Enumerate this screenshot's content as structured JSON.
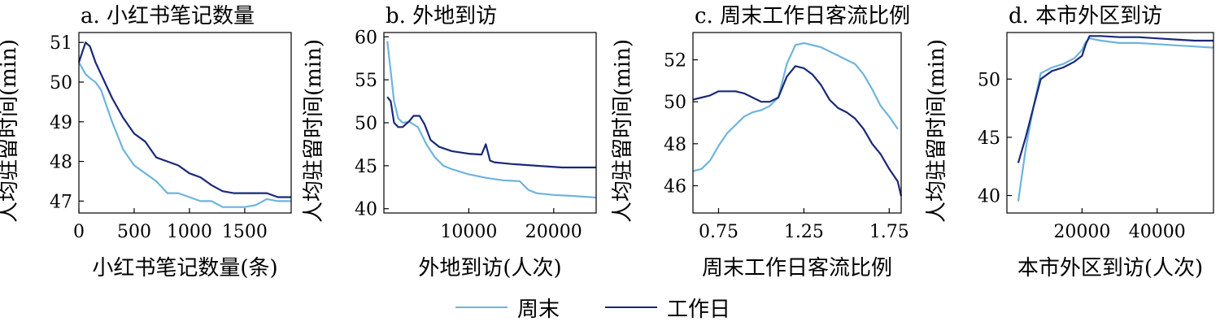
{
  "chart_data": [
    {
      "type": "line",
      "title": "a. 小红书笔记数量",
      "xlabel": "小红书笔记数量(条)",
      "ylabel": "人均驻留时间(min)",
      "xlim": [
        0,
        1920
      ],
      "ylim": [
        46.7,
        51.25
      ],
      "xticks": [
        0,
        500,
        1000,
        1500
      ],
      "yticks": [
        47,
        48,
        49,
        50,
        51
      ],
      "series": [
        {
          "name": "周末",
          "x": [
            0,
            60,
            100,
            150,
            200,
            300,
            400,
            500,
            600,
            700,
            800,
            900,
            1000,
            1100,
            1200,
            1300,
            1400,
            1500,
            1600,
            1700,
            1800,
            1920
          ],
          "y": [
            50.5,
            50.2,
            50.1,
            50.0,
            49.8,
            49.0,
            48.3,
            47.9,
            47.7,
            47.5,
            47.2,
            47.2,
            47.1,
            47.0,
            47.0,
            46.85,
            46.85,
            46.85,
            46.9,
            47.05,
            47.0,
            47.0
          ]
        },
        {
          "name": "工作日",
          "x": [
            0,
            60,
            100,
            150,
            200,
            300,
            400,
            500,
            600,
            700,
            800,
            900,
            1000,
            1100,
            1200,
            1300,
            1400,
            1500,
            1600,
            1700,
            1800,
            1920
          ],
          "y": [
            50.5,
            51.0,
            50.9,
            50.5,
            50.2,
            49.6,
            49.1,
            48.7,
            48.5,
            48.1,
            48.0,
            47.9,
            47.7,
            47.6,
            47.4,
            47.25,
            47.2,
            47.2,
            47.2,
            47.2,
            47.1,
            47.1
          ]
        }
      ]
    },
    {
      "type": "line",
      "title": "b. 外地到访",
      "xlabel": "外地到访(人次)",
      "ylabel": "人均驻留时间(min)",
      "xlim": [
        0,
        25000
      ],
      "ylim": [
        39.5,
        60.5
      ],
      "xticks": [
        10000,
        20000
      ],
      "yticks": [
        40,
        45,
        50,
        55,
        60
      ],
      "series": [
        {
          "name": "周末",
          "x": [
            400,
            800,
            1200,
            1700,
            2200,
            3000,
            4000,
            5000,
            6000,
            7000,
            8000,
            9000,
            10000,
            12000,
            14000,
            16000,
            17000,
            18000,
            20000,
            22000,
            25000
          ],
          "y": [
            59.5,
            56.0,
            52.5,
            50.5,
            50.0,
            50.1,
            49.5,
            47.5,
            46.0,
            45.0,
            44.6,
            44.3,
            44.0,
            43.6,
            43.3,
            43.2,
            42.2,
            41.8,
            41.6,
            41.5,
            41.3
          ]
        },
        {
          "name": "工作日",
          "x": [
            400,
            800,
            1200,
            1700,
            2200,
            3000,
            3500,
            4200,
            4800,
            5500,
            6500,
            8000,
            10000,
            11500,
            12000,
            12500,
            13000,
            15000,
            18000,
            21000,
            25000
          ],
          "y": [
            53.0,
            52.5,
            50.0,
            49.5,
            49.5,
            50.2,
            50.8,
            50.8,
            49.8,
            48.0,
            47.2,
            46.7,
            46.4,
            46.3,
            47.5,
            45.6,
            45.4,
            45.2,
            45.0,
            44.8,
            44.8
          ]
        }
      ]
    },
    {
      "type": "line",
      "title": "c. 周末工作日客流比例",
      "xlabel": "周末工作日客流比例",
      "ylabel": "人均驻留时间(min)",
      "xlim": [
        0.6,
        1.82
      ],
      "ylim": [
        44.7,
        53.3
      ],
      "xticks": [
        0.75,
        1.25,
        1.75
      ],
      "yticks": [
        46,
        48,
        50,
        52
      ],
      "series": [
        {
          "name": "周末",
          "x": [
            0.6,
            0.65,
            0.7,
            0.75,
            0.8,
            0.85,
            0.9,
            0.95,
            1.0,
            1.05,
            1.1,
            1.15,
            1.2,
            1.25,
            1.3,
            1.35,
            1.4,
            1.45,
            1.5,
            1.55,
            1.6,
            1.65,
            1.7,
            1.75,
            1.8
          ],
          "y": [
            46.7,
            46.8,
            47.2,
            47.9,
            48.5,
            48.9,
            49.3,
            49.5,
            49.6,
            49.8,
            50.2,
            51.8,
            52.7,
            52.8,
            52.7,
            52.6,
            52.4,
            52.2,
            52.0,
            51.8,
            51.3,
            50.6,
            49.8,
            49.3,
            48.7
          ]
        },
        {
          "name": "工作日",
          "x": [
            0.6,
            0.65,
            0.7,
            0.75,
            0.8,
            0.85,
            0.9,
            0.95,
            1.0,
            1.05,
            1.1,
            1.15,
            1.2,
            1.25,
            1.3,
            1.35,
            1.4,
            1.45,
            1.5,
            1.55,
            1.6,
            1.65,
            1.7,
            1.75,
            1.8,
            1.82
          ],
          "y": [
            50.1,
            50.2,
            50.3,
            50.5,
            50.5,
            50.5,
            50.4,
            50.2,
            50.0,
            50.0,
            50.2,
            51.2,
            51.7,
            51.6,
            51.3,
            50.8,
            50.1,
            49.7,
            49.5,
            49.2,
            48.7,
            48.0,
            47.5,
            46.8,
            46.2,
            45.5
          ]
        }
      ]
    },
    {
      "type": "line",
      "title": "d. 本市外区到访",
      "xlabel": "本市外区到访(人次)",
      "ylabel": "人均驻留时间(min)",
      "xlim": [
        0,
        55000
      ],
      "ylim": [
        38.5,
        54.0
      ],
      "xticks": [
        20000,
        40000
      ],
      "yticks": [
        40,
        45,
        50
      ],
      "series": [
        {
          "name": "周末",
          "x": [
            3000,
            5000,
            7000,
            9000,
            12000,
            15000,
            18000,
            20000,
            21000,
            22000,
            25000,
            30000,
            35000,
            40000,
            45000,
            50000,
            55000
          ],
          "y": [
            39.5,
            44.0,
            47.5,
            50.5,
            51.0,
            51.3,
            51.8,
            52.5,
            53.2,
            53.5,
            53.3,
            53.1,
            53.1,
            53.0,
            52.9,
            52.8,
            52.7
          ]
        },
        {
          "name": "工作日",
          "x": [
            3000,
            5000,
            7000,
            9000,
            12000,
            15000,
            18000,
            20000,
            21000,
            22000,
            25000,
            30000,
            35000,
            40000,
            45000,
            50000,
            55000
          ],
          "y": [
            42.8,
            45.0,
            47.5,
            50.0,
            50.7,
            51.0,
            51.5,
            52.0,
            53.0,
            53.7,
            53.7,
            53.6,
            53.6,
            53.5,
            53.4,
            53.3,
            53.3
          ]
        }
      ]
    }
  ],
  "legend": {
    "items": [
      {
        "label": "周末",
        "color": "#6FB4DB"
      },
      {
        "label": "工作日",
        "color": "#1A2878"
      }
    ]
  }
}
